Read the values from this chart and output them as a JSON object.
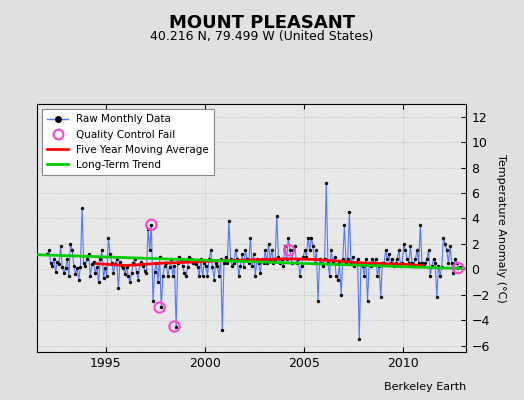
{
  "title": "MOUNT PLEASANT",
  "subtitle": "40.216 N, 79.499 W (United States)",
  "ylabel": "Temperature Anomaly (°C)",
  "credit": "Berkeley Earth",
  "ylim": [
    -6.5,
    13.0
  ],
  "xlim": [
    1991.5,
    2013.2
  ],
  "yticks": [
    -6,
    -4,
    -2,
    0,
    2,
    4,
    6,
    8,
    10,
    12
  ],
  "xticks": [
    1995,
    2000,
    2005,
    2010
  ],
  "bg_color": "#e8e8e8",
  "outer_bg": "#e0e0e0",
  "raw_line_color": "#5577ff",
  "raw_dot_color": "#000000",
  "moving_avg_color": "#ff0000",
  "trend_color": "#00cc00",
  "qc_fail_color": "#ff44cc",
  "raw_times": [
    1992.042,
    1992.125,
    1992.208,
    1992.292,
    1992.375,
    1992.458,
    1992.542,
    1992.625,
    1992.708,
    1992.792,
    1992.875,
    1992.958,
    1993.042,
    1993.125,
    1993.208,
    1993.292,
    1993.375,
    1993.458,
    1993.542,
    1993.625,
    1993.708,
    1993.792,
    1993.875,
    1993.958,
    1994.042,
    1994.125,
    1994.208,
    1994.292,
    1994.375,
    1994.458,
    1994.542,
    1994.625,
    1994.708,
    1994.792,
    1994.875,
    1994.958,
    1995.042,
    1995.125,
    1995.208,
    1995.292,
    1995.375,
    1995.458,
    1995.542,
    1995.625,
    1995.708,
    1995.792,
    1995.875,
    1995.958,
    1996.042,
    1996.125,
    1996.208,
    1996.292,
    1996.375,
    1996.458,
    1996.542,
    1996.625,
    1996.708,
    1996.792,
    1996.875,
    1996.958,
    1997.042,
    1997.125,
    1997.208,
    1997.292,
    1997.375,
    1997.458,
    1997.542,
    1997.625,
    1997.708,
    1997.792,
    1997.875,
    1997.958,
    1998.042,
    1998.125,
    1998.208,
    1998.292,
    1998.375,
    1998.458,
    1998.542,
    1998.625,
    1998.708,
    1998.792,
    1998.875,
    1998.958,
    1999.042,
    1999.125,
    1999.208,
    1999.292,
    1999.375,
    1999.458,
    1999.542,
    1999.625,
    1999.708,
    1999.792,
    1999.875,
    1999.958,
    2000.042,
    2000.125,
    2000.208,
    2000.292,
    2000.375,
    2000.458,
    2000.542,
    2000.625,
    2000.708,
    2000.792,
    2000.875,
    2000.958,
    2001.042,
    2001.125,
    2001.208,
    2001.292,
    2001.375,
    2001.458,
    2001.542,
    2001.625,
    2001.708,
    2001.792,
    2001.875,
    2001.958,
    2002.042,
    2002.125,
    2002.208,
    2002.292,
    2002.375,
    2002.458,
    2002.542,
    2002.625,
    2002.708,
    2002.792,
    2002.875,
    2002.958,
    2003.042,
    2003.125,
    2003.208,
    2003.292,
    2003.375,
    2003.458,
    2003.542,
    2003.625,
    2003.708,
    2003.792,
    2003.875,
    2003.958,
    2004.042,
    2004.125,
    2004.208,
    2004.292,
    2004.375,
    2004.458,
    2004.542,
    2004.625,
    2004.708,
    2004.792,
    2004.875,
    2004.958,
    2005.042,
    2005.125,
    2005.208,
    2005.292,
    2005.375,
    2005.458,
    2005.542,
    2005.625,
    2005.708,
    2005.792,
    2005.875,
    2005.958,
    2006.042,
    2006.125,
    2006.208,
    2006.292,
    2006.375,
    2006.458,
    2006.542,
    2006.625,
    2006.708,
    2006.792,
    2006.875,
    2006.958,
    2007.042,
    2007.125,
    2007.208,
    2007.292,
    2007.375,
    2007.458,
    2007.542,
    2007.625,
    2007.708,
    2007.792,
    2007.875,
    2007.958,
    2008.042,
    2008.125,
    2008.208,
    2008.292,
    2008.375,
    2008.458,
    2008.542,
    2008.625,
    2008.708,
    2008.792,
    2008.875,
    2008.958,
    2009.042,
    2009.125,
    2009.208,
    2009.292,
    2009.375,
    2009.458,
    2009.542,
    2009.625,
    2009.708,
    2009.792,
    2009.875,
    2009.958,
    2010.042,
    2010.125,
    2010.208,
    2010.292,
    2010.375,
    2010.458,
    2010.542,
    2010.625,
    2010.708,
    2010.792,
    2010.875,
    2010.958,
    2011.042,
    2011.125,
    2011.208,
    2011.292,
    2011.375,
    2011.458,
    2011.542,
    2011.625,
    2011.708,
    2011.792,
    2011.875,
    2011.958,
    2012.042,
    2012.125,
    2012.208,
    2012.292,
    2012.375,
    2012.458,
    2012.542,
    2012.625,
    2012.708,
    2012.792,
    2012.875
  ],
  "raw_values": [
    1.2,
    1.5,
    0.5,
    0.3,
    0.8,
    -0.2,
    0.6,
    0.4,
    1.8,
    0.2,
    -0.3,
    0.1,
    0.8,
    -0.5,
    2.0,
    1.5,
    0.3,
    -0.4,
    0.1,
    -0.8,
    0.2,
    4.8,
    0.5,
    0.3,
    0.8,
    1.2,
    -0.5,
    0.4,
    0.6,
    -0.3,
    0.2,
    -1.0,
    0.8,
    1.5,
    -0.7,
    0.1,
    -0.5,
    2.5,
    1.2,
    0.5,
    -0.3,
    0.4,
    0.8,
    -1.5,
    0.6,
    0.3,
    0.1,
    -0.4,
    0.2,
    -0.5,
    -1.0,
    -0.3,
    0.5,
    0.8,
    -0.2,
    -0.8,
    0.4,
    0.6,
    0.3,
    -0.1,
    -0.3,
    3.2,
    1.5,
    3.5,
    -2.5,
    -0.2,
    0.5,
    -1.0,
    1.0,
    -3.0,
    -0.5,
    0.3,
    0.5,
    -0.5,
    0.2,
    0.8,
    -0.5,
    0.3,
    -4.5,
    0.5,
    1.0,
    0.8,
    0.3,
    -0.3,
    -0.5,
    0.2,
    1.0,
    0.8,
    0.5,
    0.6,
    0.4,
    0.2,
    -0.5,
    0.8,
    -0.5,
    0.5,
    0.3,
    -0.5,
    0.8,
    1.5,
    0.2,
    -0.8,
    0.5,
    0.3,
    -0.5,
    0.8,
    -4.8,
    0.5,
    1.0,
    0.5,
    3.8,
    0.8,
    0.3,
    0.5,
    1.5,
    0.8,
    -0.5,
    0.3,
    1.2,
    0.2,
    1.5,
    0.8,
    0.5,
    2.5,
    0.3,
    1.2,
    -0.5,
    0.8,
    0.5,
    -0.3,
    0.8,
    0.5,
    1.5,
    0.5,
    2.0,
    0.8,
    1.5,
    0.5,
    0.8,
    4.2,
    1.0,
    0.5,
    0.8,
    0.3,
    1.8,
    0.8,
    2.5,
    1.5,
    0.5,
    1.5,
    1.8,
    0.5,
    0.8,
    -0.5,
    0.3,
    1.0,
    1.5,
    1.0,
    2.5,
    1.5,
    2.5,
    1.8,
    0.5,
    1.5,
    -2.5,
    0.8,
    0.5,
    0.3,
    0.8,
    6.8,
    0.5,
    -0.5,
    1.5,
    0.5,
    1.0,
    -0.5,
    -0.8,
    0.5,
    -2.0,
    0.8,
    3.5,
    0.5,
    0.8,
    4.5,
    0.5,
    1.0,
    0.3,
    0.5,
    0.8,
    -5.5,
    0.5,
    0.3,
    -0.5,
    0.8,
    -2.5,
    0.5,
    0.3,
    0.8,
    0.5,
    0.8,
    -0.5,
    0.3,
    -2.2,
    0.5,
    0.5,
    1.5,
    0.8,
    1.2,
    0.5,
    0.8,
    0.3,
    0.5,
    0.8,
    1.5,
    0.3,
    0.5,
    2.0,
    1.5,
    0.8,
    0.5,
    1.8,
    0.5,
    0.3,
    0.8,
    1.5,
    0.5,
    3.5,
    0.5,
    0.3,
    0.5,
    0.8,
    1.5,
    -0.5,
    0.3,
    0.8,
    0.5,
    -2.2,
    0.3,
    -0.5,
    0.2,
    2.5,
    2.0,
    1.5,
    0.5,
    1.8,
    0.5,
    -0.3,
    0.8,
    0.5,
    0.1,
    0.2
  ],
  "qc_fail_times": [
    1997.292,
    1997.708,
    1998.458,
    2004.25,
    2012.792
  ],
  "qc_fail_values": [
    3.5,
    -3.0,
    -4.5,
    1.5,
    0.1
  ],
  "moving_avg_times": [
    1994.5,
    1995.0,
    1995.5,
    1996.0,
    1996.5,
    1997.0,
    1997.5,
    1998.0,
    1998.5,
    1999.0,
    1999.5,
    2000.0,
    2000.5,
    2001.0,
    2001.5,
    2002.0,
    2002.5,
    2003.0,
    2003.5,
    2004.0,
    2004.5,
    2005.0,
    2005.5,
    2006.0,
    2006.5,
    2007.0,
    2007.5,
    2008.0,
    2008.5,
    2009.0,
    2009.5,
    2010.0,
    2010.5,
    2011.0
  ],
  "moving_avg_values": [
    0.45,
    0.4,
    0.35,
    0.3,
    0.35,
    0.4,
    0.45,
    0.5,
    0.52,
    0.55,
    0.58,
    0.62,
    0.65,
    0.68,
    0.7,
    0.72,
    0.75,
    0.78,
    0.8,
    0.82,
    0.82,
    0.8,
    0.78,
    0.72,
    0.68,
    0.62,
    0.55,
    0.5,
    0.48,
    0.45,
    0.42,
    0.4,
    0.35,
    0.3
  ],
  "trend_times": [
    1991.5,
    2013.2
  ],
  "trend_values": [
    1.15,
    0.05
  ]
}
